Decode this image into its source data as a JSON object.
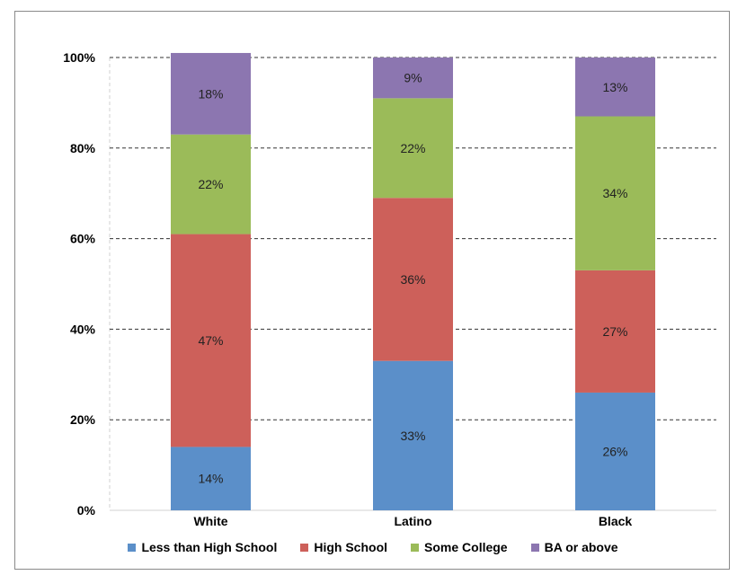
{
  "chart_data": {
    "type": "bar",
    "stacked": true,
    "categories": [
      "White",
      "Latino",
      "Black"
    ],
    "series": [
      {
        "name": "Less than High School",
        "values": [
          14,
          33,
          26
        ],
        "labels": [
          "14%",
          "33%",
          "26%"
        ],
        "color": "#5b8fc9"
      },
      {
        "name": "High School",
        "values": [
          47,
          36,
          27
        ],
        "labels": [
          "47%",
          "36%",
          "27%"
        ],
        "color": "#cd605a"
      },
      {
        "name": "Some College",
        "values": [
          22,
          22,
          34
        ],
        "labels": [
          "22%",
          "22%",
          "34%"
        ],
        "color": "#9bbb59"
      },
      {
        "name": "BA or above",
        "values": [
          18,
          9,
          13
        ],
        "labels": [
          "18%",
          "9%",
          "13%"
        ],
        "color": "#8c76b0"
      }
    ],
    "ylim": [
      0,
      100
    ],
    "yticks": [
      0,
      20,
      40,
      60,
      80,
      100
    ],
    "ytick_labels": [
      "0%",
      "20%",
      "40%",
      "60%",
      "80%",
      "100%"
    ],
    "grid": "dashed horizontal",
    "legend_position": "bottom",
    "title": "",
    "xlabel": "",
    "ylabel": ""
  }
}
